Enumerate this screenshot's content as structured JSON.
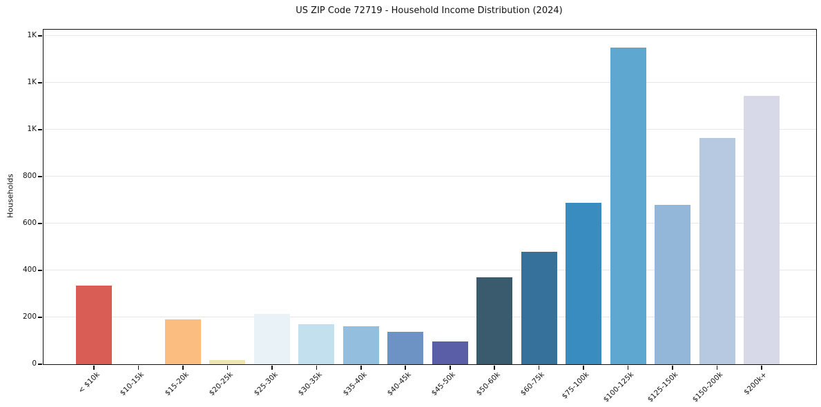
{
  "chart_data": {
    "type": "bar",
    "title": "US ZIP Code 72719 - Household Income Distribution (2024)",
    "xlabel": "",
    "ylabel": "Households",
    "categories": [
      "< $10k",
      "$10-15k",
      "$15-20k",
      "$20-25k",
      "$25-30k",
      "$30-35k",
      "$35-40k",
      "$40-45k",
      "$45-50k",
      "$50-60k",
      "$60-75k",
      "$75-100k",
      "$100-125k",
      "$125-150k",
      "$150-200k",
      "$200k+"
    ],
    "values": [
      335,
      0,
      192,
      18,
      215,
      170,
      162,
      138,
      98,
      370,
      478,
      688,
      1350,
      679,
      965,
      1145
    ],
    "bar_colors": [
      "#d95d55",
      "#f2a15f",
      "#fbbd80",
      "#f1e5ae",
      "#e8f2f7",
      "#c3e0ee",
      "#94bedd",
      "#6d93c5",
      "#5a5ea7",
      "#3a5a6e",
      "#35719a",
      "#388cc0",
      "#5ea7d0",
      "#93b7d8",
      "#b7c8e1",
      "#d7d9e8"
    ],
    "ylim": [
      0,
      1426
    ],
    "yticks": {
      "values": [
        0,
        200,
        400,
        600,
        800,
        1000,
        1200,
        1400
      ],
      "labels": [
        "0",
        "200",
        "400",
        "600",
        "800",
        "1K",
        "1K",
        "1K"
      ]
    },
    "grid": "horizontal",
    "legend": "none",
    "background_color": "#ffffff",
    "gridline_color": "#e7e7ea",
    "spine_color": "#0f0f0f",
    "x_label_rotation_deg": 45
  }
}
